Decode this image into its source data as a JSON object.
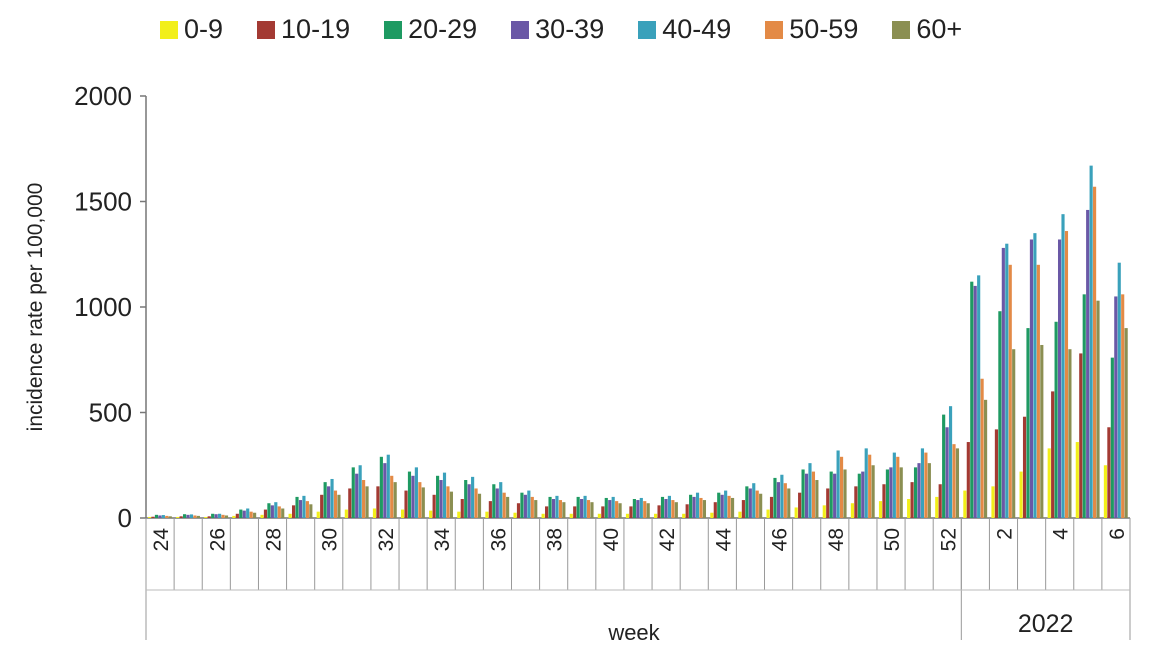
{
  "chart_data": {
    "type": "bar",
    "title": "",
    "ylabel": "incidence rate per 100,000",
    "xlabel": "week",
    "group_labels": [
      "2022"
    ],
    "ylim": [
      0,
      2000
    ],
    "yticks": [
      "0",
      "500",
      "1000",
      "1500",
      "2000"
    ],
    "grid": false,
    "legend_position": "top",
    "categories": [
      "24",
      "25",
      "26",
      "27",
      "28",
      "29",
      "30",
      "31",
      "32",
      "33",
      "34",
      "35",
      "36",
      "37",
      "38",
      "39",
      "40",
      "41",
      "42",
      "43",
      "44",
      "45",
      "46",
      "47",
      "48",
      "49",
      "50",
      "51",
      "52",
      "1",
      "2",
      "3",
      "4",
      "5",
      "6"
    ],
    "category_labels_shown": [
      "24",
      "26",
      "28",
      "30",
      "32",
      "34",
      "36",
      "38",
      "40",
      "42",
      "44",
      "46",
      "48",
      "50",
      "52",
      "2",
      "4",
      "6"
    ],
    "series": [
      {
        "name": "0-9",
        "color": "#f2ef1a",
        "values": [
          5,
          5,
          5,
          10,
          15,
          20,
          30,
          40,
          45,
          40,
          35,
          30,
          30,
          25,
          20,
          20,
          20,
          20,
          20,
          20,
          25,
          30,
          40,
          50,
          60,
          70,
          80,
          90,
          100,
          130,
          150,
          220,
          330,
          360,
          250
        ]
      },
      {
        "name": "10-19",
        "color": "#a33a33",
        "values": [
          6,
          8,
          8,
          20,
          40,
          60,
          110,
          140,
          150,
          130,
          110,
          90,
          80,
          70,
          55,
          55,
          55,
          55,
          60,
          65,
          75,
          85,
          100,
          120,
          140,
          150,
          160,
          170,
          160,
          360,
          420,
          480,
          600,
          780,
          430
        ]
      },
      {
        "name": "20-29",
        "color": "#1e9a62",
        "values": [
          15,
          18,
          20,
          40,
          70,
          100,
          170,
          240,
          290,
          220,
          200,
          180,
          160,
          120,
          100,
          100,
          95,
          90,
          100,
          110,
          120,
          150,
          190,
          230,
          220,
          210,
          230,
          240,
          490,
          1120,
          980,
          900,
          930,
          1060,
          760
        ]
      },
      {
        "name": "30-39",
        "color": "#6a58a6",
        "values": [
          12,
          15,
          18,
          35,
          60,
          85,
          150,
          210,
          260,
          200,
          180,
          160,
          140,
          110,
          90,
          90,
          85,
          85,
          90,
          100,
          110,
          140,
          170,
          210,
          210,
          220,
          240,
          260,
          430,
          1100,
          1280,
          1320,
          1320,
          1460,
          1050
        ]
      },
      {
        "name": "40-49",
        "color": "#3aa1bb",
        "values": [
          14,
          17,
          20,
          45,
          75,
          105,
          185,
          250,
          300,
          240,
          215,
          195,
          170,
          130,
          105,
          105,
          100,
          95,
          105,
          120,
          130,
          165,
          205,
          260,
          320,
          330,
          310,
          330,
          530,
          1150,
          1300,
          1350,
          1440,
          1670,
          1210
        ]
      },
      {
        "name": "50-59",
        "color": "#e38a46",
        "values": [
          10,
          12,
          15,
          30,
          55,
          80,
          130,
          180,
          200,
          170,
          150,
          140,
          120,
          100,
          85,
          85,
          80,
          80,
          85,
          95,
          105,
          130,
          165,
          220,
          290,
          300,
          290,
          310,
          350,
          660,
          1200,
          1200,
          1360,
          1570,
          1060
        ]
      },
      {
        "name": "60+",
        "color": "#8b8f52",
        "values": [
          8,
          10,
          12,
          25,
          45,
          65,
          110,
          150,
          170,
          145,
          125,
          115,
          100,
          85,
          75,
          75,
          70,
          70,
          75,
          85,
          95,
          115,
          140,
          180,
          230,
          250,
          240,
          260,
          330,
          560,
          800,
          820,
          800,
          1030,
          900
        ]
      }
    ]
  }
}
